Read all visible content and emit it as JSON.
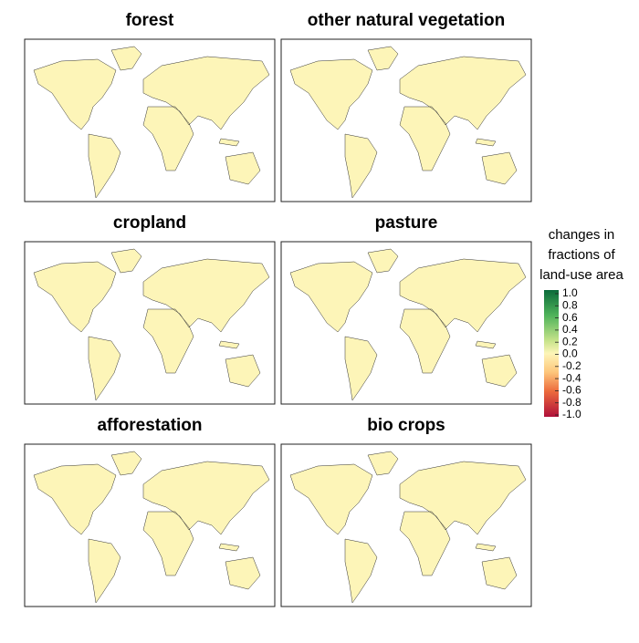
{
  "panels": [
    {
      "title": "forest"
    },
    {
      "title": "other natural vegetation"
    },
    {
      "title": "cropland"
    },
    {
      "title": "pasture"
    },
    {
      "title": "afforestation"
    },
    {
      "title": "bio crops"
    }
  ],
  "legend": {
    "title_lines": [
      "changes in",
      "fractions of",
      "land-use area"
    ],
    "ticks": [
      {
        "value": 1,
        "label": "1.0"
      },
      0.8,
      0.6,
      0.4,
      0.2,
      {
        "value": 0,
        "label": "0.0"
      },
      -0.2,
      -0.4,
      -0.6,
      -0.8,
      {
        "value": -1,
        "label": "-1.0"
      }
    ],
    "range": [
      -1,
      1
    ]
  }
}
